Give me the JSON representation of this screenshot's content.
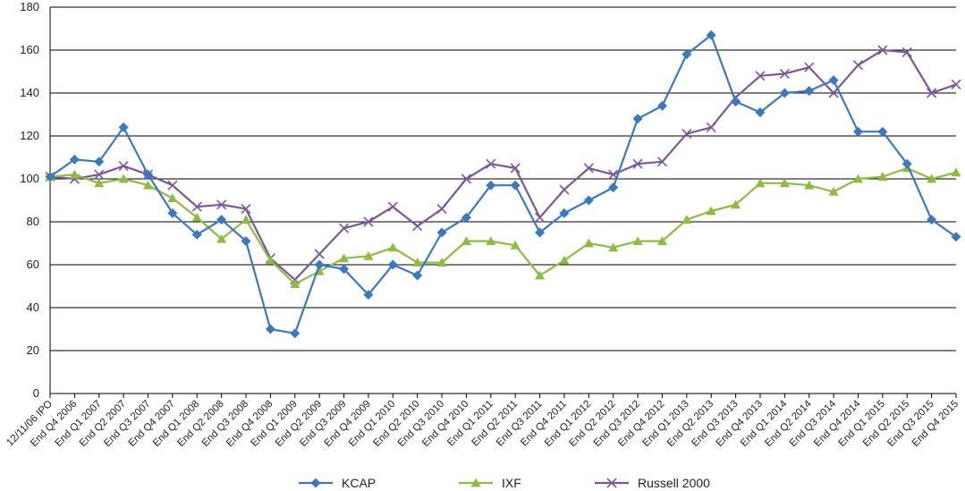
{
  "chart_data": {
    "type": "line",
    "title": "",
    "xlabel": "",
    "ylabel": "",
    "ylim": [
      0,
      180
    ],
    "yticks": [
      0,
      20,
      40,
      60,
      80,
      100,
      120,
      140,
      160,
      180
    ],
    "grid": "horizontal",
    "legend_position": "bottom",
    "categories": [
      "12/11/06 IPO",
      "End Q4 2006",
      "End Q1 2007",
      "End Q2 2007",
      "End Q3 2007",
      "End Q4 2007",
      "End Q1 2008",
      "End Q2 2008",
      "End Q3 2008",
      "End Q4 2008",
      "End Q1 2009",
      "End Q2 2009",
      "End Q3 2009",
      "End Q4 2009",
      "End Q1 2010",
      "End Q2 2010",
      "End Q3 2010",
      "End Q4 2010",
      "End Q1 2011",
      "End Q2 2011",
      "End Q3 2011",
      "End Q4 2011",
      "End Q1 2012",
      "End Q2 2012",
      "End Q3 2012",
      "End Q4 2012",
      "End Q1 2013",
      "End Q2 2013",
      "End Q3 2013",
      "End Q4 2013",
      "End Q1 2014",
      "End Q2 2014",
      "End Q3 2014",
      "End Q4 2014",
      "End Q1 2015",
      "End Q2 2015",
      "End Q3 2015",
      "End Q4 2015"
    ],
    "series": [
      {
        "name": "KCAP",
        "color": "#3b78bd",
        "marker": "diamond",
        "values": [
          101,
          109,
          108,
          124,
          102,
          84,
          74,
          81,
          71,
          30,
          28,
          60,
          58,
          46,
          60,
          55,
          75,
          82,
          97,
          97,
          75,
          84,
          90,
          96,
          128,
          134,
          158,
          167,
          136,
          131,
          140,
          141,
          146,
          122,
          122,
          107,
          81,
          73
        ]
      },
      {
        "name": "IXF",
        "color": "#8dbb43",
        "marker": "triangle",
        "values": [
          101,
          102,
          98,
          100,
          97,
          91,
          82,
          72,
          81,
          62,
          51,
          57,
          63,
          64,
          68,
          61,
          61,
          71,
          71,
          69,
          55,
          62,
          70,
          68,
          71,
          71,
          81,
          85,
          88,
          98,
          98,
          97,
          94,
          100,
          101,
          105,
          100,
          103
        ]
      },
      {
        "name": "Russell 2000",
        "color": "#7b579a",
        "marker": "x",
        "values": [
          101,
          100,
          102,
          106,
          102,
          97,
          87,
          88,
          86,
          63,
          53,
          65,
          77,
          80,
          87,
          78,
          86,
          100,
          107,
          105,
          82,
          95,
          105,
          102,
          107,
          108,
          121,
          124,
          138,
          148,
          149,
          152,
          140,
          153,
          160,
          159,
          140,
          144
        ]
      }
    ]
  }
}
